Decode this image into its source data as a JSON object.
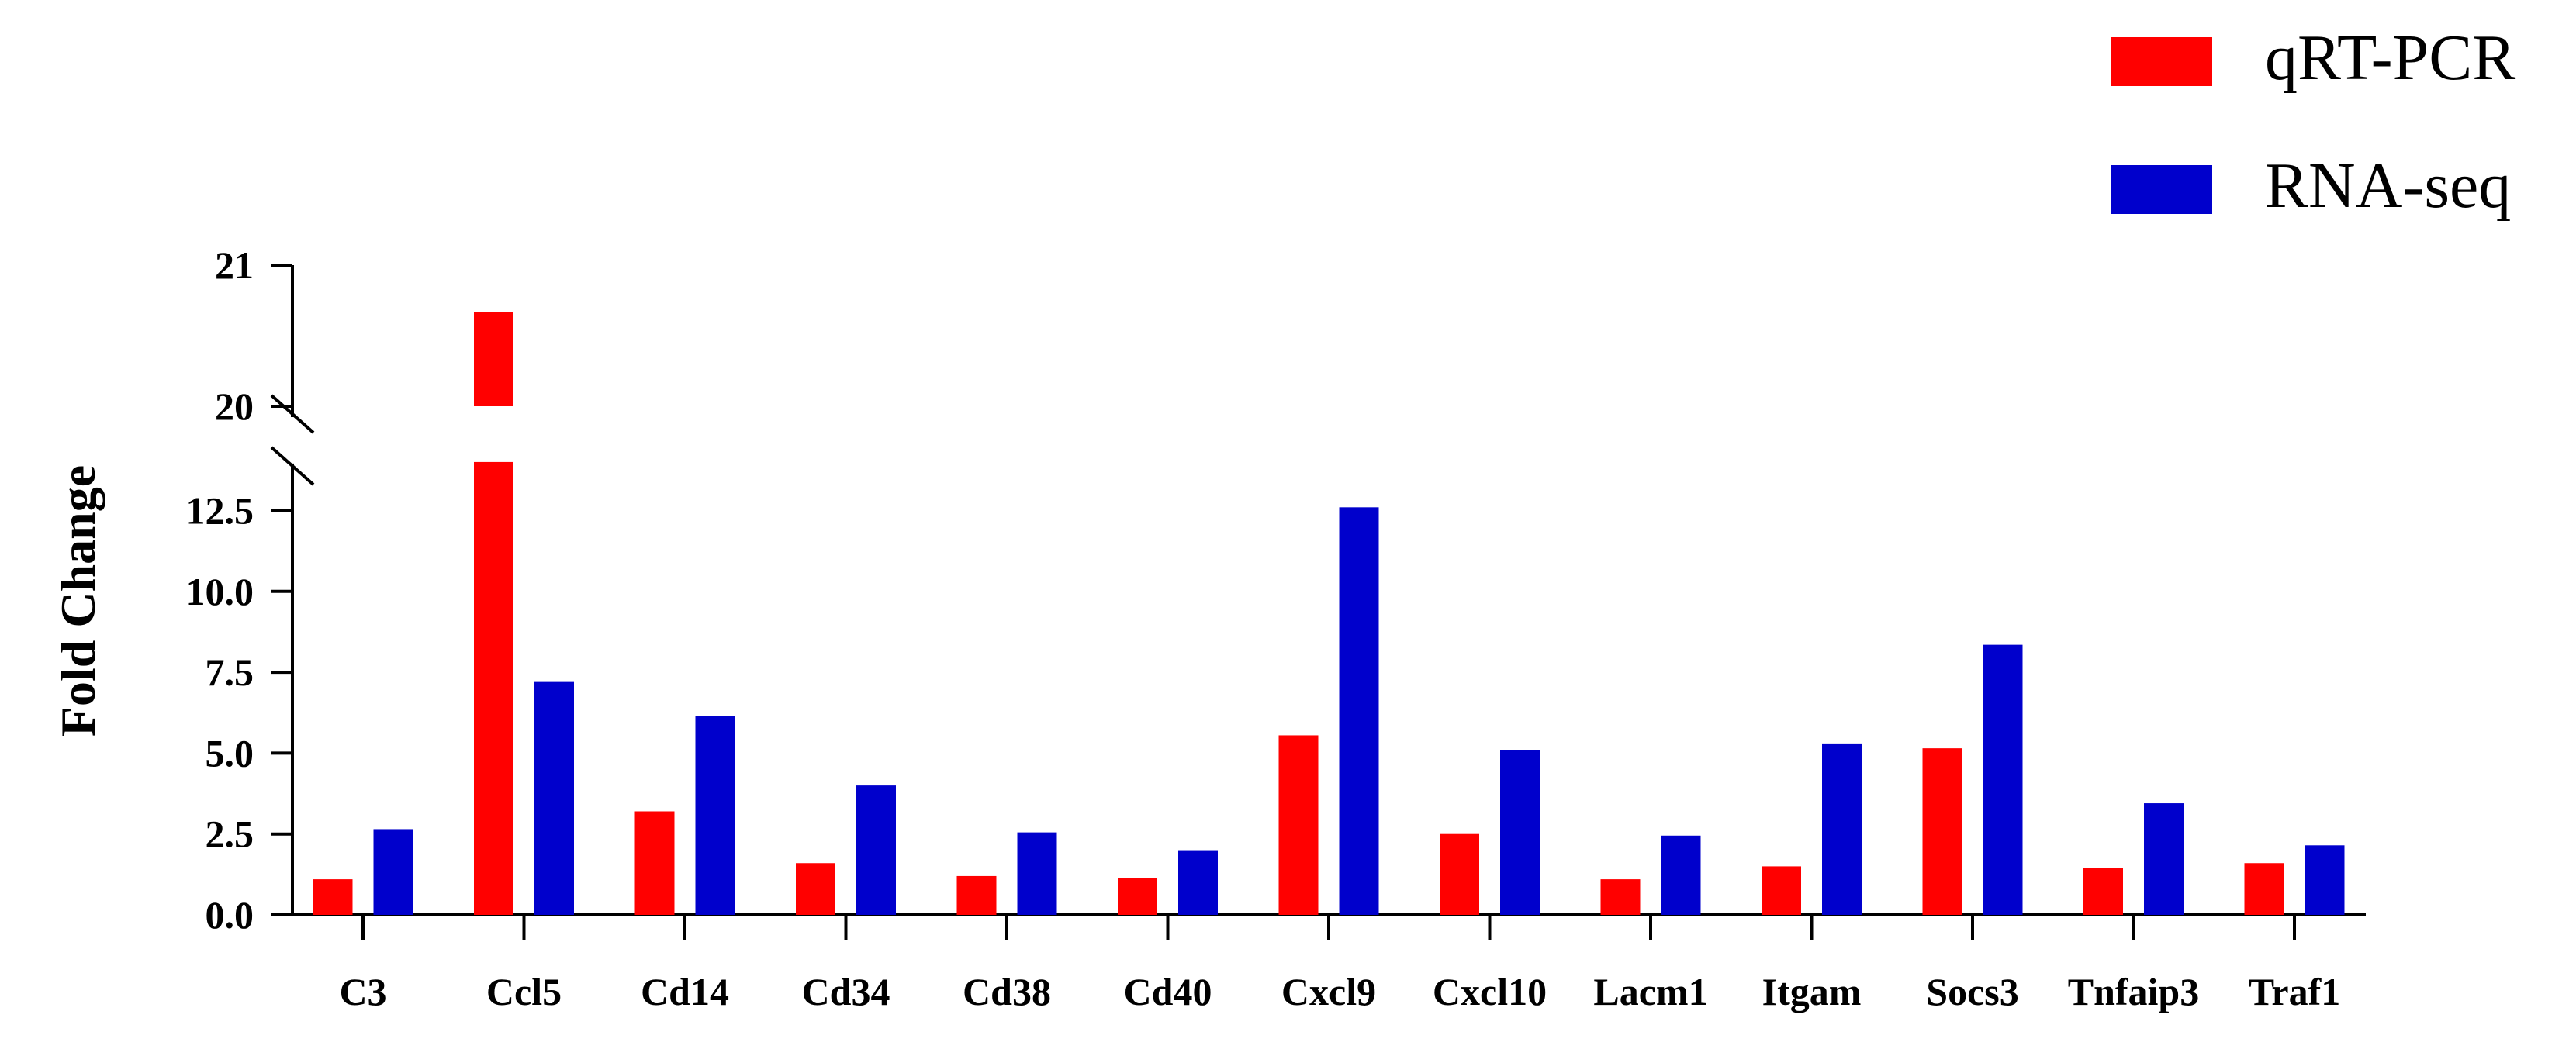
{
  "chart_data": {
    "type": "bar",
    "title": "",
    "xlabel": "",
    "ylabel": "Fold Change",
    "axis_break": {
      "lower_range": [
        0,
        14
      ],
      "upper_range": [
        20,
        21
      ]
    },
    "lower_ticks": [
      "0.0",
      "2.5",
      "5.0",
      "7.5",
      "10.0",
      "12.5"
    ],
    "upper_ticks": [
      "20",
      "21"
    ],
    "legend_position": "top-right",
    "categories": [
      "C3",
      "Ccl5",
      "Cd14",
      "Cd34",
      "Cd38",
      "Cd40",
      "Cxcl9",
      "Cxcl10",
      "Lacm1",
      "Itgam",
      "Socs3",
      "Tnfaip3",
      "Traf1"
    ],
    "series": [
      {
        "name": "qRT-PCR",
        "color": "#ff0000",
        "values": [
          1.1,
          20.67,
          3.2,
          1.6,
          1.2,
          1.15,
          5.55,
          2.5,
          1.1,
          1.5,
          5.15,
          1.45,
          1.6
        ]
      },
      {
        "name": "RNA-seq",
        "color": "#0000cc",
        "values": [
          2.65,
          7.2,
          6.15,
          4.0,
          2.55,
          2.0,
          12.6,
          5.1,
          2.45,
          5.3,
          8.35,
          3.45,
          2.15
        ]
      }
    ]
  }
}
